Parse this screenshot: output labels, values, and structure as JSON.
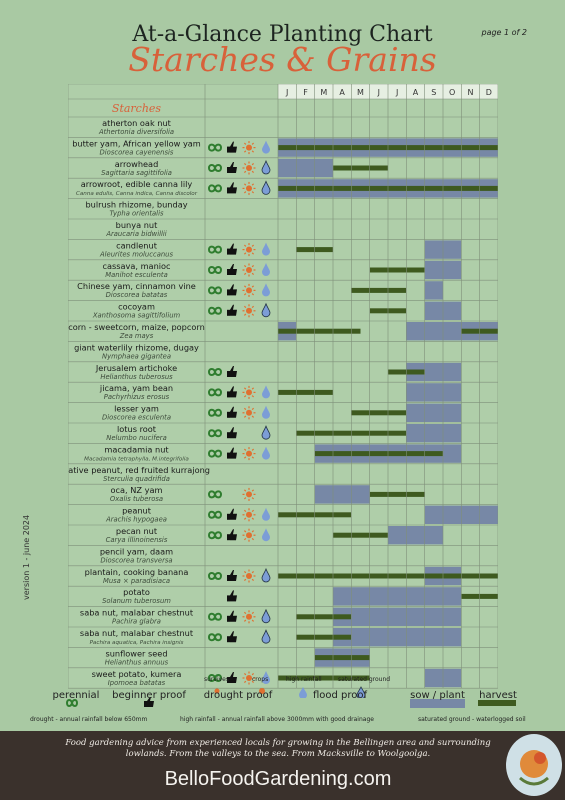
{
  "header": {
    "title": "At-a-Glance Planting Chart",
    "subtitle": "Starches & Grains",
    "page": "page 1 of 2"
  },
  "version": "version 1 - june 2024",
  "section_label": "Starches",
  "months": [
    "J",
    "F",
    "M",
    "A",
    "M",
    "J",
    "J",
    "A",
    "S",
    "O",
    "N",
    "D"
  ],
  "colors": {
    "sow": "#7788a6",
    "harvest": "#3e5a1f",
    "grid": "#7f8f7a"
  },
  "crops": [
    {
      "name": "atherton oak nut",
      "latin": "Athertonia diversifolia",
      "icons": [],
      "sow": [],
      "harvest": []
    },
    {
      "name": "butter yam, African yellow yam",
      "latin": "Dioscorea cayenensis",
      "icons": [
        "perennial",
        "beginner",
        "drought",
        "flood"
      ],
      "sow": [
        [
          0,
          12
        ]
      ],
      "harvest": [
        [
          0,
          12
        ]
      ]
    },
    {
      "name": "arrowhead",
      "latin": "Sagittaria sagittifolia",
      "icons": [
        "perennial",
        "beginner",
        "drought",
        "saturated"
      ],
      "sow": [
        [
          0,
          3
        ]
      ],
      "harvest": [
        [
          3,
          6
        ]
      ]
    },
    {
      "name": "arrowroot, edible canna lily",
      "latin": "Canna edulis, Canna indica, Canna discolor",
      "icons": [
        "perennial",
        "beginner",
        "drought",
        "saturated"
      ],
      "sow": [
        [
          0,
          12
        ]
      ],
      "harvest": [
        [
          0,
          12
        ]
      ]
    },
    {
      "name": "bulrush rhizome, bunday",
      "latin": "Typha orientalis",
      "icons": [],
      "sow": [],
      "harvest": []
    },
    {
      "name": "bunya nut",
      "latin": "Araucaria bidwillii",
      "icons": [],
      "sow": [],
      "harvest": []
    },
    {
      "name": "candlenut",
      "latin": "Aleurites moluccanus",
      "icons": [
        "perennial",
        "beginner",
        "drought",
        "flood"
      ],
      "sow": [
        [
          8,
          10
        ]
      ],
      "harvest": [
        [
          1,
          3
        ]
      ]
    },
    {
      "name": "cassava, manioc",
      "latin": "Manihot esculenta",
      "icons": [
        "perennial",
        "beginner",
        "drought",
        "flood"
      ],
      "sow": [
        [
          8,
          10
        ]
      ],
      "harvest": [
        [
          5,
          8
        ]
      ]
    },
    {
      "name": "Chinese yam, cinnamon vine",
      "latin": "Dioscorea batatas",
      "icons": [
        "perennial",
        "beginner",
        "drought",
        "flood"
      ],
      "sow": [
        [
          8,
          9
        ]
      ],
      "harvest": [
        [
          4,
          7
        ]
      ]
    },
    {
      "name": "cocoyam",
      "latin": "Xanthosoma sagittifolium",
      "icons": [
        "perennial",
        "beginner",
        "drought",
        "saturated"
      ],
      "sow": [
        [
          8,
          10
        ]
      ],
      "harvest": [
        [
          5,
          7
        ]
      ]
    },
    {
      "name": "corn - sweetcorn, maize, popcorn",
      "latin": "Zea mays",
      "icons": [],
      "sow": [
        [
          0,
          1
        ],
        [
          7,
          12
        ]
      ],
      "harvest": [
        [
          0,
          4.5
        ],
        [
          10,
          12
        ]
      ]
    },
    {
      "name": "giant waterlily rhizome, dugay",
      "latin": "Nymphaea gigantea",
      "icons": [],
      "sow": [],
      "harvest": []
    },
    {
      "name": "Jerusalem artichoke",
      "latin": "Helianthus tuberosus",
      "icons": [
        "perennial",
        "beginner"
      ],
      "sow": [
        [
          7,
          10
        ]
      ],
      "harvest": [
        [
          6,
          8
        ]
      ]
    },
    {
      "name": "jicama, yam bean",
      "latin": "Pachyrhizus erosus",
      "icons": [
        "perennial",
        "beginner",
        "drought",
        "flood"
      ],
      "sow": [
        [
          7,
          10
        ]
      ],
      "harvest": [
        [
          0,
          3
        ]
      ]
    },
    {
      "name": "lesser yam",
      "latin": "Dioscorea esculenta",
      "icons": [
        "perennial",
        "beginner",
        "drought",
        "flood"
      ],
      "sow": [
        [
          7,
          10
        ]
      ],
      "harvest": [
        [
          4,
          7
        ]
      ]
    },
    {
      "name": "lotus root",
      "latin": "Nelumbo nucifera",
      "icons": [
        "perennial",
        "beginner",
        "saturated"
      ],
      "sow": [
        [
          7,
          10
        ]
      ],
      "harvest": [
        [
          1,
          7
        ]
      ]
    },
    {
      "name": "macadamia nut",
      "latin": "Macadamia tetraphylla, M.integrifolia",
      "icons": [
        "perennial",
        "beginner",
        "drought",
        "flood"
      ],
      "sow": [
        [
          2,
          10
        ]
      ],
      "harvest": [
        [
          2,
          9
        ]
      ]
    },
    {
      "name": "native peanut, red fruited kurrajong",
      "latin": "Sterculia quadrifida",
      "icons": [],
      "sow": [],
      "harvest": []
    },
    {
      "name": "oca, NZ yam",
      "latin": "Oxalis tuberosa",
      "icons": [
        "perennial",
        "drought"
      ],
      "sow": [
        [
          2,
          5
        ]
      ],
      "harvest": [
        [
          5,
          8
        ]
      ]
    },
    {
      "name": "peanut",
      "latin": "Arachis hypogaea",
      "icons": [
        "perennial",
        "beginner",
        "drought",
        "flood"
      ],
      "sow": [
        [
          8,
          12
        ]
      ],
      "harvest": [
        [
          0,
          4
        ]
      ]
    },
    {
      "name": "pecan nut",
      "latin": "Carya illinoinensis",
      "icons": [
        "perennial",
        "beginner",
        "drought",
        "flood"
      ],
      "sow": [
        [
          6,
          9
        ]
      ],
      "harvest": [
        [
          3,
          6
        ]
      ]
    },
    {
      "name": "pencil yam, daam",
      "latin": "Dioscorea transversa",
      "icons": [],
      "sow": [],
      "harvest": []
    },
    {
      "name": "plantain, cooking banana",
      "latin": "Musa × paradisiaca",
      "icons": [
        "perennial",
        "beginner",
        "drought",
        "saturated"
      ],
      "sow": [
        [
          8,
          10
        ]
      ],
      "harvest": [
        [
          0,
          12
        ]
      ]
    },
    {
      "name": "potato",
      "latin": "Solanum tuberosum",
      "icons": [
        "beginner"
      ],
      "sow": [
        [
          3,
          10
        ]
      ],
      "harvest": [
        [
          10,
          12
        ]
      ]
    },
    {
      "name": "saba nut, malabar chestnut",
      "latin": "Pachira glabra",
      "icons": [
        "perennial",
        "beginner",
        "drought",
        "saturated"
      ],
      "sow": [
        [
          3,
          10
        ]
      ],
      "harvest": [
        [
          1,
          4
        ]
      ]
    },
    {
      "name": "saba nut, malabar chestnut",
      "latin": "Pachira aquatica, Pachira insignis",
      "icons": [
        "perennial",
        "beginner",
        "saturated"
      ],
      "sow": [
        [
          3,
          10
        ]
      ],
      "harvest": [
        [
          1,
          4
        ]
      ]
    },
    {
      "name": "sunflower seed",
      "latin": "Helianthus annuus",
      "icons": [],
      "sow": [
        [
          2,
          5
        ]
      ],
      "harvest": [
        [
          2,
          5
        ]
      ]
    },
    {
      "name": "sweet potato, kumera",
      "latin": "Ipomoea batatas",
      "icons": [
        "perennial",
        "beginner",
        "drought",
        "flood"
      ],
      "sow": [
        [
          8,
          10
        ]
      ],
      "harvest": [
        [
          0,
          5
        ]
      ]
    }
  ],
  "legend": {
    "perennial": "perennial",
    "beginner": "beginner proof",
    "drought": "drought proof",
    "flood": "flood proof",
    "sow": "sow / plant",
    "harvest": "harvest",
    "survives": "survives",
    "crops": "crops",
    "high_rainfall": "high rainfall",
    "saturated_ground": "saturated ground",
    "drought_note": "drought - annual rainfall below 650mm",
    "rain_note": "high rainfall - annual rainfall above 3000mm with good drainage",
    "soil_note": "saturated ground - waterlogged soil"
  },
  "footer": {
    "text": "Food gardening advice from experienced locals for growing in the Bellingen area and surrounding lowlands. From the valleys to the sea. From Macksville to Woolgoolga.",
    "site": "BelloFoodGardening.com"
  }
}
